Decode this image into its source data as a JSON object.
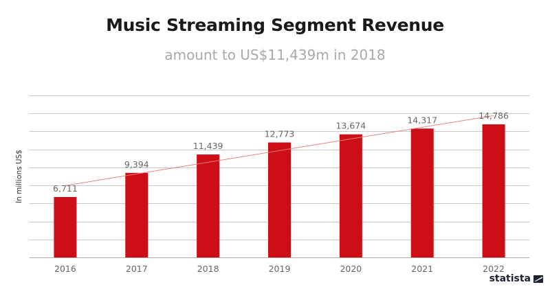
{
  "chart_data": {
    "type": "bar",
    "title": "Music Streaming Segment Revenue",
    "subtitle": "amount to US$11,439m in 2018",
    "ylabel": "In millions US$",
    "xlabel": "",
    "categories": [
      "2016",
      "2017",
      "2018",
      "2019",
      "2020",
      "2021",
      "2022"
    ],
    "values": [
      6711,
      9394,
      11439,
      12773,
      13674,
      14317,
      14786
    ],
    "data_labels": [
      "6,711",
      "9,394",
      "11,439",
      "12,773",
      "13,674",
      "14,317",
      "14,786"
    ],
    "ylim": [
      0,
      18000
    ],
    "grid": true,
    "trendline": "linear",
    "colors": {
      "bar": "#cc0e16",
      "trendline": "#f08080",
      "grid": "#c8c8c8",
      "text": "#666666"
    }
  },
  "branding": {
    "logo": "statista"
  }
}
